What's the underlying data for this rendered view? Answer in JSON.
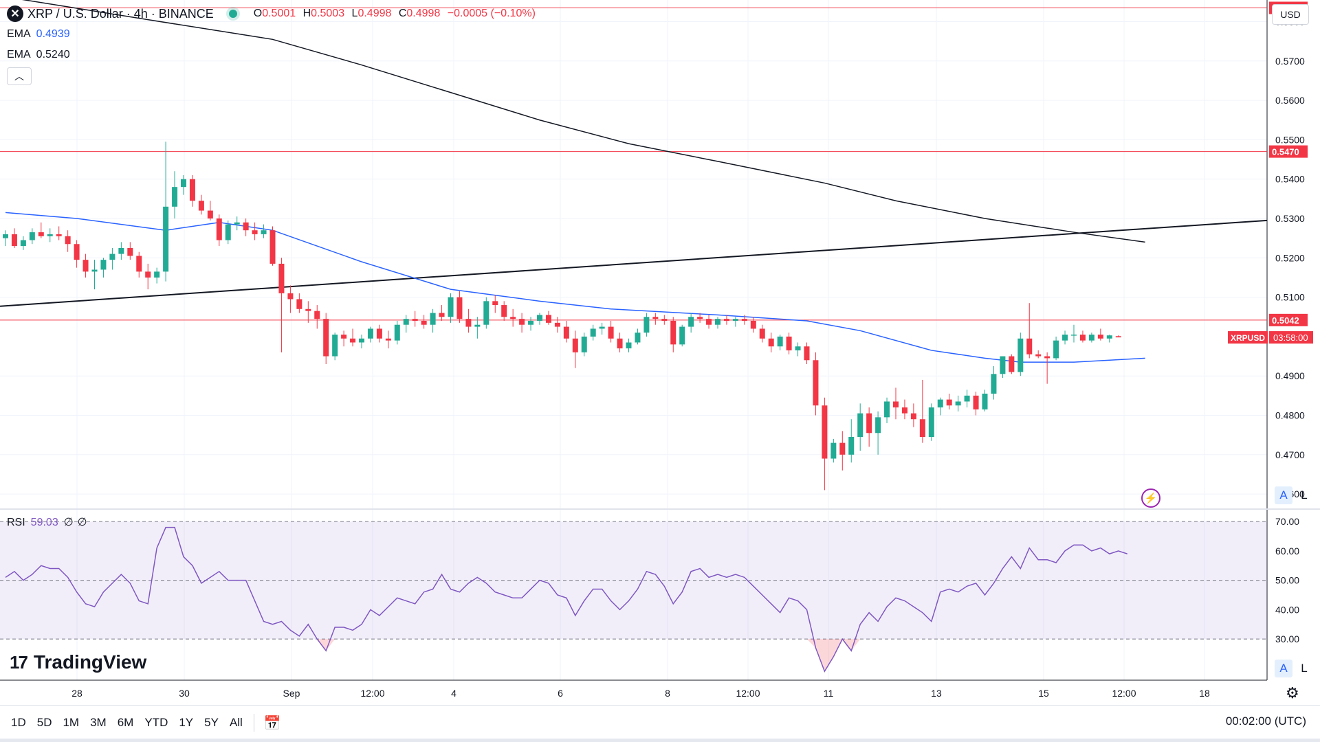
{
  "header": {
    "symbol_title": "XRP / U.S. Dollar · 4h · BINANCE",
    "open": "0.5001",
    "high": "0.5003",
    "low": "0.4998",
    "close": "0.4998",
    "change": "−0.0005 (−0.10%)",
    "currency": "USD"
  },
  "ema": [
    {
      "label": "EMA",
      "value": "0.4939",
      "color": "#2962ff"
    },
    {
      "label": "EMA",
      "value": "0.5240",
      "color": "#131722"
    }
  ],
  "rsi_legend": {
    "label": "RSI",
    "value": "59.03",
    "extra1": "∅",
    "extra2": "∅"
  },
  "price_axis_badges": [
    {
      "value": "0.5835",
      "color": "#f23645"
    },
    {
      "value": "0.5470",
      "color": "#f23645"
    },
    {
      "value": "0.5042",
      "color": "#f23645"
    }
  ],
  "last_price_badge": {
    "symbol": "XRPUSD",
    "countdown": "03:58:00",
    "color": "#f23645"
  },
  "brand": {
    "name": "TradingView"
  },
  "timeframes": [
    "1D",
    "5D",
    "1M",
    "3M",
    "6M",
    "YTD",
    "1Y",
    "5Y",
    "All"
  ],
  "clock": "00:02:00 (UTC)",
  "toggles": {
    "auto": "A",
    "log": "L"
  },
  "colors": {
    "up": "#22ab94",
    "down": "#f23645",
    "ema_fast": "#2962ff",
    "ema_slow": "#131722",
    "rsi": "#7e57c2"
  },
  "chart_data": {
    "type": "candlestick",
    "price_ylim": [
      0.456,
      0.5855
    ],
    "price_ticks": [
      "0.5800",
      "0.5700",
      "0.5600",
      "0.5500",
      "0.5400",
      "0.5300",
      "0.5200",
      "0.5100",
      "0.4900",
      "0.4800",
      "0.4700",
      "0.4600"
    ],
    "x_labels": [
      "28",
      "30",
      "Sep",
      "12:00",
      "4",
      "6",
      "8",
      "12:00",
      "11",
      "13",
      "15",
      "12:00",
      "18"
    ],
    "horizontal_levels": [
      0.5835,
      0.547,
      0.5042
    ],
    "trendline": {
      "from": [
        0,
        0.5077
      ],
      "to": [
        109,
        0.5295
      ]
    },
    "candles": [
      [
        0.525,
        0.527,
        0.523,
        0.526
      ],
      [
        0.526,
        0.5275,
        0.5225,
        0.523
      ],
      [
        0.523,
        0.5255,
        0.522,
        0.5245
      ],
      [
        0.5245,
        0.5275,
        0.5235,
        0.5265
      ],
      [
        0.5265,
        0.529,
        0.525,
        0.5255
      ],
      [
        0.5255,
        0.5275,
        0.524,
        0.526
      ],
      [
        0.526,
        0.528,
        0.5245,
        0.5255
      ],
      [
        0.5255,
        0.527,
        0.5215,
        0.5235
      ],
      [
        0.5235,
        0.5245,
        0.5175,
        0.5195
      ],
      [
        0.5195,
        0.521,
        0.515,
        0.5165
      ],
      [
        0.5165,
        0.5195,
        0.512,
        0.517
      ],
      [
        0.517,
        0.52,
        0.515,
        0.5195
      ],
      [
        0.5195,
        0.5225,
        0.517,
        0.521
      ],
      [
        0.521,
        0.524,
        0.5195,
        0.5225
      ],
      [
        0.5225,
        0.524,
        0.5195,
        0.5205
      ],
      [
        0.5205,
        0.5215,
        0.515,
        0.5165
      ],
      [
        0.5165,
        0.5185,
        0.512,
        0.515
      ],
      [
        0.515,
        0.5175,
        0.5135,
        0.5165
      ],
      [
        0.5165,
        0.5495,
        0.514,
        0.533
      ],
      [
        0.533,
        0.542,
        0.53,
        0.538
      ],
      [
        0.538,
        0.541,
        0.536,
        0.54
      ],
      [
        0.54,
        0.541,
        0.533,
        0.5345
      ],
      [
        0.5345,
        0.536,
        0.531,
        0.532
      ],
      [
        0.532,
        0.5345,
        0.5295,
        0.53
      ],
      [
        0.53,
        0.531,
        0.523,
        0.5245
      ],
      [
        0.5245,
        0.5295,
        0.5235,
        0.5285
      ],
      [
        0.5285,
        0.5305,
        0.527,
        0.529
      ],
      [
        0.529,
        0.53,
        0.5255,
        0.527
      ],
      [
        0.527,
        0.529,
        0.5245,
        0.526
      ],
      [
        0.526,
        0.5285,
        0.525,
        0.527
      ],
      [
        0.527,
        0.528,
        0.518,
        0.5185
      ],
      [
        0.5185,
        0.52,
        0.496,
        0.511
      ],
      [
        0.511,
        0.513,
        0.506,
        0.5095
      ],
      [
        0.5095,
        0.511,
        0.506,
        0.507
      ],
      [
        0.507,
        0.509,
        0.5035,
        0.5065
      ],
      [
        0.5065,
        0.508,
        0.502,
        0.5045
      ],
      [
        0.5045,
        0.506,
        0.493,
        0.495
      ],
      [
        0.495,
        0.501,
        0.494,
        0.5005
      ],
      [
        0.5005,
        0.5015,
        0.4975,
        0.4995
      ],
      [
        0.4995,
        0.502,
        0.4975,
        0.4985
      ],
      [
        0.4985,
        0.5005,
        0.497,
        0.4995
      ],
      [
        0.4995,
        0.5025,
        0.4985,
        0.502
      ],
      [
        0.502,
        0.503,
        0.4985,
        0.4995
      ],
      [
        0.4995,
        0.5015,
        0.497,
        0.499
      ],
      [
        0.499,
        0.504,
        0.498,
        0.503
      ],
      [
        0.503,
        0.5055,
        0.501,
        0.5045
      ],
      [
        0.5045,
        0.5065,
        0.5025,
        0.504
      ],
      [
        0.504,
        0.5055,
        0.502,
        0.503
      ],
      [
        0.503,
        0.507,
        0.501,
        0.506
      ],
      [
        0.506,
        0.508,
        0.504,
        0.505
      ],
      [
        0.505,
        0.511,
        0.5035,
        0.51
      ],
      [
        0.51,
        0.5115,
        0.5035,
        0.5045
      ],
      [
        0.5045,
        0.507,
        0.501,
        0.5025
      ],
      [
        0.5025,
        0.505,
        0.4995,
        0.503
      ],
      [
        0.503,
        0.51,
        0.502,
        0.509
      ],
      [
        0.509,
        0.5105,
        0.506,
        0.508
      ],
      [
        0.508,
        0.509,
        0.504,
        0.505
      ],
      [
        0.505,
        0.507,
        0.5025,
        0.5045
      ],
      [
        0.5045,
        0.506,
        0.501,
        0.503
      ],
      [
        0.503,
        0.505,
        0.5015,
        0.504
      ],
      [
        0.504,
        0.506,
        0.503,
        0.5055
      ],
      [
        0.5055,
        0.5065,
        0.503,
        0.5035
      ],
      [
        0.5035,
        0.505,
        0.501,
        0.5025
      ],
      [
        0.5025,
        0.504,
        0.4985,
        0.4995
      ],
      [
        0.4995,
        0.5015,
        0.492,
        0.496
      ],
      [
        0.496,
        0.501,
        0.495,
        0.5
      ],
      [
        0.5,
        0.503,
        0.499,
        0.502
      ],
      [
        0.502,
        0.5035,
        0.5005,
        0.5025
      ],
      [
        0.5025,
        0.504,
        0.4985,
        0.4995
      ],
      [
        0.4995,
        0.501,
        0.496,
        0.497
      ],
      [
        0.497,
        0.4995,
        0.496,
        0.4985
      ],
      [
        0.4985,
        0.502,
        0.498,
        0.501
      ],
      [
        0.501,
        0.506,
        0.5,
        0.505
      ],
      [
        0.505,
        0.506,
        0.503,
        0.5045
      ],
      [
        0.5045,
        0.5055,
        0.503,
        0.504
      ],
      [
        0.504,
        0.505,
        0.496,
        0.498
      ],
      [
        0.498,
        0.503,
        0.4975,
        0.5025
      ],
      [
        0.5025,
        0.506,
        0.501,
        0.505
      ],
      [
        0.505,
        0.506,
        0.5035,
        0.5045
      ],
      [
        0.5045,
        0.5055,
        0.502,
        0.503
      ],
      [
        0.503,
        0.505,
        0.502,
        0.5045
      ],
      [
        0.5045,
        0.5055,
        0.503,
        0.504
      ],
      [
        0.504,
        0.505,
        0.5025,
        0.5045
      ],
      [
        0.5045,
        0.5055,
        0.503,
        0.504
      ],
      [
        0.504,
        0.505,
        0.501,
        0.502
      ],
      [
        0.502,
        0.503,
        0.4985,
        0.4995
      ],
      [
        0.4995,
        0.501,
        0.496,
        0.4975
      ],
      [
        0.4975,
        0.5005,
        0.4965,
        0.5
      ],
      [
        0.5,
        0.501,
        0.4955,
        0.4965
      ],
      [
        0.4965,
        0.4985,
        0.495,
        0.4975
      ],
      [
        0.4975,
        0.4985,
        0.493,
        0.494
      ],
      [
        0.494,
        0.496,
        0.48,
        0.4825
      ],
      [
        0.4825,
        0.4845,
        0.461,
        0.469
      ],
      [
        0.469,
        0.474,
        0.468,
        0.473
      ],
      [
        0.473,
        0.476,
        0.466,
        0.47
      ],
      [
        0.47,
        0.479,
        0.468,
        0.4745
      ],
      [
        0.4745,
        0.483,
        0.471,
        0.4805
      ],
      [
        0.4805,
        0.482,
        0.472,
        0.4755
      ],
      [
        0.4755,
        0.481,
        0.47,
        0.4795
      ],
      [
        0.4795,
        0.4845,
        0.478,
        0.4835
      ],
      [
        0.4835,
        0.487,
        0.479,
        0.482
      ],
      [
        0.482,
        0.484,
        0.479,
        0.4805
      ],
      [
        0.4805,
        0.483,
        0.477,
        0.479
      ],
      [
        0.479,
        0.489,
        0.473,
        0.4745
      ],
      [
        0.4745,
        0.483,
        0.4735,
        0.482
      ],
      [
        0.482,
        0.4845,
        0.48,
        0.484
      ],
      [
        0.484,
        0.4855,
        0.4815,
        0.4825
      ],
      [
        0.4825,
        0.485,
        0.481,
        0.4835
      ],
      [
        0.4835,
        0.4865,
        0.482,
        0.485
      ],
      [
        0.485,
        0.486,
        0.48,
        0.4815
      ],
      [
        0.4815,
        0.4865,
        0.481,
        0.4855
      ],
      [
        0.4855,
        0.4925,
        0.484,
        0.4905
      ],
      [
        0.4905,
        0.495,
        0.4895,
        0.495
      ],
      [
        0.495,
        0.4955,
        0.4905,
        0.491
      ],
      [
        0.491,
        0.501,
        0.49,
        0.4995
      ],
      [
        0.4995,
        0.5085,
        0.4945,
        0.4955
      ],
      [
        0.4955,
        0.4965,
        0.4945,
        0.495
      ],
      [
        0.495,
        0.496,
        0.488,
        0.4945
      ],
      [
        0.4945,
        0.5,
        0.494,
        0.499
      ],
      [
        0.499,
        0.5015,
        0.498,
        0.5005
      ],
      [
        0.5005,
        0.503,
        0.4985,
        0.5005
      ],
      [
        0.5005,
        0.5015,
        0.4985,
        0.499
      ],
      [
        0.499,
        0.501,
        0.4985,
        0.5005
      ],
      [
        0.5005,
        0.502,
        0.499,
        0.4995
      ],
      [
        0.4995,
        0.5005,
        0.4985,
        0.5003
      ],
      [
        0.5001,
        0.5003,
        0.4998,
        0.4998
      ]
    ],
    "ema_fast": {
      "name": "EMA",
      "points": [
        [
          0,
          0.5315
        ],
        [
          8,
          0.53
        ],
        [
          18,
          0.527
        ],
        [
          24,
          0.529
        ],
        [
          30,
          0.527
        ],
        [
          40,
          0.519
        ],
        [
          50,
          0.512
        ],
        [
          60,
          0.509
        ],
        [
          68,
          0.507
        ],
        [
          80,
          0.5055
        ],
        [
          90,
          0.504
        ],
        [
          96,
          0.5015
        ],
        [
          104,
          0.4965
        ],
        [
          110,
          0.4945
        ],
        [
          114,
          0.4935
        ],
        [
          120,
          0.4935
        ],
        [
          124,
          0.494
        ],
        [
          128,
          0.4945
        ]
      ]
    },
    "ema_slow": {
      "name": "EMA",
      "points": [
        [
          0,
          0.5863
        ],
        [
          16,
          0.5805
        ],
        [
          30,
          0.5755
        ],
        [
          40,
          0.569
        ],
        [
          50,
          0.562
        ],
        [
          60,
          0.555
        ],
        [
          70,
          0.549
        ],
        [
          80,
          0.5445
        ],
        [
          92,
          0.539
        ],
        [
          100,
          0.5345
        ],
        [
          110,
          0.53
        ],
        [
          120,
          0.5265
        ],
        [
          128,
          0.524
        ]
      ]
    },
    "rsi": {
      "ylim": [
        16,
        74
      ],
      "ticks": [
        "70.00",
        "60.00",
        "50.00",
        "40.00",
        "30.00"
      ],
      "overbought": 70,
      "oversold": 30,
      "values": [
        51,
        53,
        50,
        52,
        55,
        54,
        54,
        51,
        46,
        42,
        41,
        46,
        49,
        52,
        49,
        43,
        42,
        61,
        68,
        68,
        58,
        55,
        49,
        51,
        53,
        50,
        50,
        50,
        43,
        36,
        35,
        36,
        33,
        31,
        35,
        30,
        26,
        34,
        34,
        33,
        35,
        40,
        38,
        41,
        44,
        43,
        42,
        46,
        47,
        52,
        47,
        46,
        49,
        51,
        49,
        46,
        45,
        44,
        44,
        47,
        50,
        49,
        45,
        44,
        38,
        43,
        47,
        47,
        43,
        40,
        43,
        47,
        53,
        52,
        48,
        42,
        46,
        53,
        54,
        51,
        52,
        51,
        52,
        51,
        48,
        45,
        42,
        39,
        44,
        43,
        40,
        27,
        19,
        24,
        30,
        26,
        35,
        39,
        36,
        41,
        44,
        43,
        41,
        39,
        36,
        46,
        47,
        46,
        48,
        49,
        45,
        49,
        54,
        58,
        54,
        61,
        57,
        57,
        56,
        60,
        62,
        62,
        60,
        61,
        59,
        60,
        59
      ]
    }
  }
}
